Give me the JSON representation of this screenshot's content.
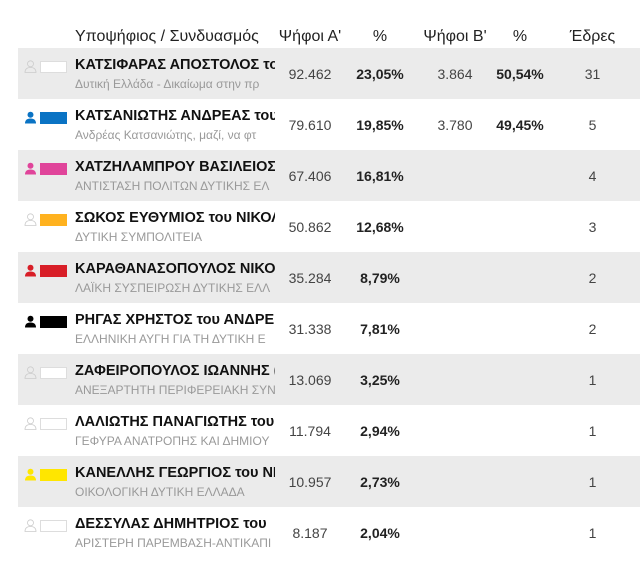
{
  "headers": {
    "candidate": "Υποψήφιος / Συνδυασμός",
    "votes_a": "Ψήφοι Α'",
    "pct_a": "%",
    "votes_b": "Ψήφοι Β'",
    "pct_b": "%",
    "seats": "Έδρες"
  },
  "rows": [
    {
      "candidate": "ΚΑΤΣΙΦΑΡΑΣ ΑΠΟΣΤΟΛΟΣ του",
      "party": "Δυτική Ελλάδα - Δικαίωμα στην πρ",
      "votes_a": "92.462",
      "pct_a": "23,05%",
      "votes_b": "3.864",
      "pct_b": "50,54%",
      "seats": "31",
      "color": "#ffffff",
      "icon_filled": false
    },
    {
      "candidate": "ΚΑΤΣΑΝΙΩΤΗΣ ΑΝΔΡΕΑΣ του",
      "party": "Ανδρέας Κατσανιώτης, μαζί, να φτ",
      "votes_a": "79.610",
      "pct_a": "19,85%",
      "votes_b": "3.780",
      "pct_b": "49,45%",
      "seats": "5",
      "color": "#0a73c4",
      "icon_filled": true
    },
    {
      "candidate": "ΧΑΤΖΗΛΑΜΠΡΟΥ ΒΑΣΙΛΕΙΟΣ",
      "party": "ΑΝΤΙΣΤΑΣΗ ΠΟΛΙΤΩΝ ΔΥΤΙΚΗΣ ΕΛ",
      "votes_a": "67.406",
      "pct_a": "16,81%",
      "votes_b": "",
      "pct_b": "",
      "seats": "4",
      "color": "#e0449a",
      "icon_filled": true
    },
    {
      "candidate": "ΣΩΚΟΣ ΕΥΘΥΜΙΟΣ του ΝΙΚΟΛ",
      "party": "ΔΥΤΙΚΗ ΣΥΜΠΟΛΙΤΕΙΑ",
      "votes_a": "50.862",
      "pct_a": "12,68%",
      "votes_b": "",
      "pct_b": "",
      "seats": "3",
      "color": "#ffb21f",
      "icon_filled": false
    },
    {
      "candidate": "ΚΑΡΑΘΑΝΑΣΟΠΟΥΛΟΣ ΝΙΚΟΛ",
      "party": "ΛΑΪΚΗ ΣΥΣΠΕΙΡΩΣΗ ΔΥΤΙΚΗΣ ΕΛΛ",
      "votes_a": "35.284",
      "pct_a": "8,79%",
      "votes_b": "",
      "pct_b": "",
      "seats": "2",
      "color": "#d81e27",
      "icon_filled": true
    },
    {
      "candidate": "ΡΗΓΑΣ ΧΡΗΣΤΟΣ του ΑΝΔΡΕ",
      "party": "ΕΛΛΗΝΙΚΗ ΑΥΓΗ ΓΙΑ ΤΗ ΔΥΤΙΚΗ Ε",
      "votes_a": "31.338",
      "pct_a": "7,81%",
      "votes_b": "",
      "pct_b": "",
      "seats": "2",
      "color": "#000000",
      "icon_filled": true
    },
    {
      "candidate": "ΖΑΦΕΙΡΟΠΟΥΛΟΣ ΙΩΑΝΝΗΣ (",
      "party": "ΑΝΕΞΑΡΤΗΤΗ ΠΕΡΙΦΕΡΕΙΑΚΗ ΣΥΝ",
      "votes_a": "13.069",
      "pct_a": "3,25%",
      "votes_b": "",
      "pct_b": "",
      "seats": "1",
      "color": "#ffffff",
      "icon_filled": false
    },
    {
      "candidate": "ΛΑΛΙΩΤΗΣ ΠΑΝΑΓΙΩΤΗΣ του",
      "party": "ΓΕΦΥΡΑ ΑΝΑΤΡΟΠΗΣ ΚΑΙ ΔΗΜΙΟΥ",
      "votes_a": "11.794",
      "pct_a": "2,94%",
      "votes_b": "",
      "pct_b": "",
      "seats": "1",
      "color": "#ffffff",
      "icon_filled": false
    },
    {
      "candidate": "ΚΑΝΕΛΛΗΣ ΓΕΩΡΓΙΟΣ του ΝΙ",
      "party": "ΟΙΚΟΛΟΓΙΚΗ ΔΥΤΙΚΗ ΕΛΛΑΔΑ",
      "votes_a": "10.957",
      "pct_a": "2,73%",
      "votes_b": "",
      "pct_b": "",
      "seats": "1",
      "color": "#ffe600",
      "icon_filled": true
    },
    {
      "candidate": "ΔΕΣΣΥΛΑΣ ΔΗΜΗΤΡΙΟΣ του",
      "party": "ΑΡΙΣΤΕΡΗ ΠΑΡΕΜΒΑΣΗ-ΑΝΤΙΚΑΠΙ",
      "votes_a": "8.187",
      "pct_a": "2,04%",
      "votes_b": "",
      "pct_b": "",
      "seats": "1",
      "color": "#ffffff",
      "icon_filled": false
    }
  ]
}
